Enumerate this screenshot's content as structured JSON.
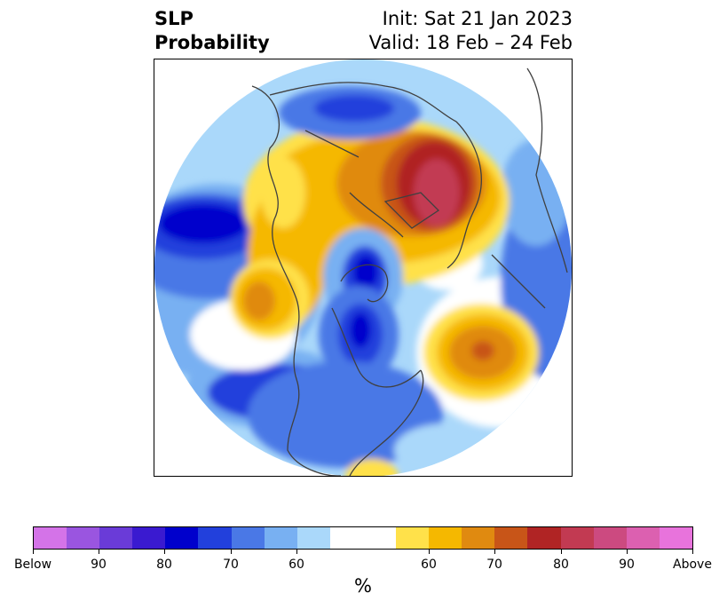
{
  "header": {
    "title_line1": "SLP",
    "title_line2": "Probability",
    "init": "Init: Sat 21 Jan 2023",
    "valid": "Valid: 18 Feb – 24 Feb"
  },
  "colorbar": {
    "colors": [
      "#d473e8",
      "#9a55e0",
      "#6a3bd8",
      "#3a1ad0",
      "#0000cc",
      "#2240dc",
      "#4a78e6",
      "#78b0f2",
      "#aad8fa",
      "#ffffff",
      "#ffffff",
      "#ffe14a",
      "#f5b800",
      "#e08a10",
      "#c85518",
      "#b02424",
      "#c23a52",
      "#cc4a80",
      "#dc60b0",
      "#e873dc"
    ],
    "tick_labels": [
      "Below",
      "90",
      "80",
      "70",
      "60",
      "60",
      "70",
      "80",
      "90",
      "Above"
    ],
    "unit": "%"
  }
}
